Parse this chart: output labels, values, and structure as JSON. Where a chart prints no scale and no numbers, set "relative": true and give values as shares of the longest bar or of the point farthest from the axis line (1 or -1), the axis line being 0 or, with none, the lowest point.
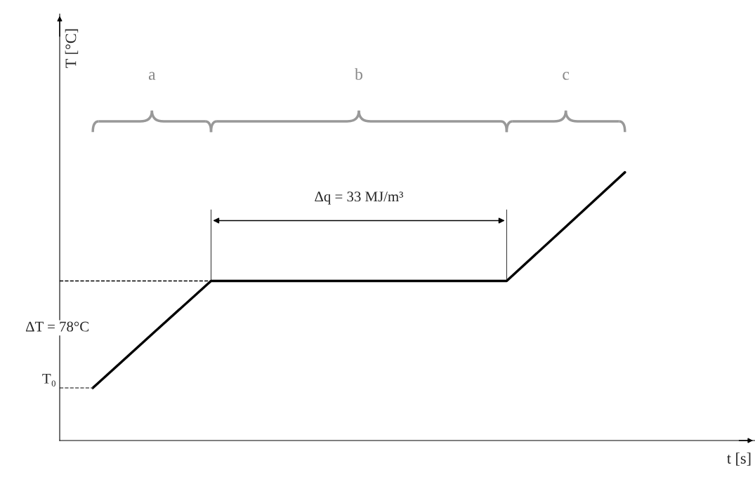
{
  "chart_data": {
    "type": "line",
    "relative": true,
    "xlabel": "t [s]",
    "categories": [
      null,
      null,
      null,
      null,
      null,
      null,
      null,
      null,
      null,
      null
    ],
    "series": [
      {
        "color": "#000000",
        "values": [
          0.196,
          0.396,
          0.595,
          0.595,
          0.595,
          0.595,
          0.595,
          0.595,
          0.797,
          1.0
        ]
      }
    ],
    "ref_lines": [
      {
        "axis": "y",
        "value": 0.196,
        "label": "T₀",
        "color": "#555555",
        "line_style": "dashed"
      },
      {
        "axis": "y",
        "value": 0.595,
        "label": null,
        "color": "#000000",
        "line_style": "dashed"
      }
    ],
    "annotations": [
      "a",
      "b",
      "c",
      "Δq = 33 MJ/m³",
      "ΔT = 78°C",
      "T [°C]"
    ],
    "legend": false,
    "grid": false,
    "marker": "none",
    "line_style": "solid"
  }
}
